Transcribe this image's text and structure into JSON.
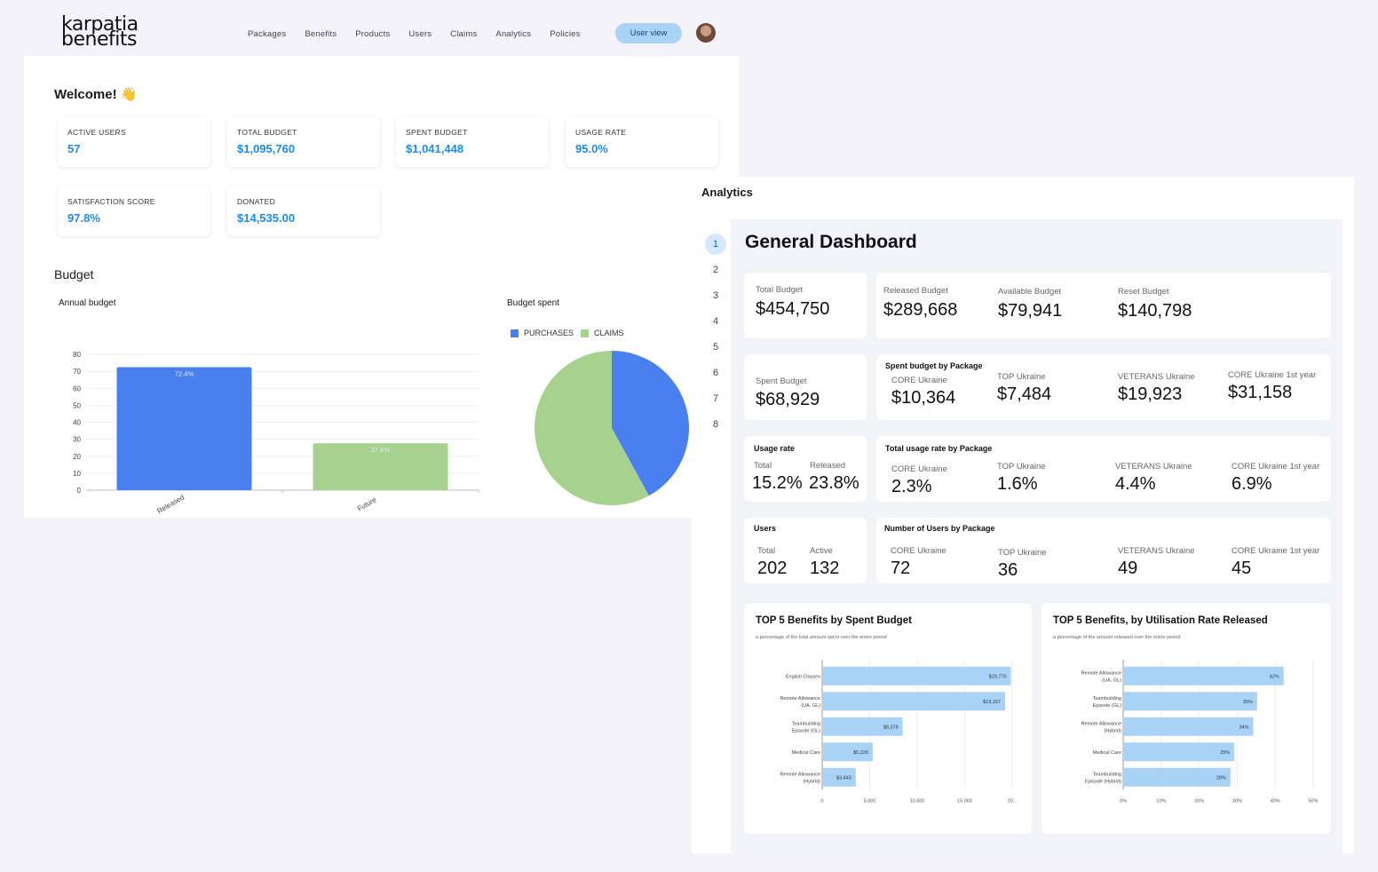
{
  "brand": {
    "line1": "karpatia",
    "line2": "benefits"
  },
  "nav": {
    "items": [
      "Packages",
      "Benefits",
      "Products",
      "Users",
      "Claims",
      "Analytics",
      "Policies"
    ],
    "user_view_label": "User view"
  },
  "welcome": "Welcome! 👋",
  "stats": [
    {
      "label": "ACTIVE USERS",
      "value": "57"
    },
    {
      "label": "TOTAL BUDGET",
      "value": "$1,095,760"
    },
    {
      "label": "SPENT BUDGET",
      "value": "$1,041,448"
    },
    {
      "label": "USAGE RATE",
      "value": "95.0%"
    },
    {
      "label": "SATISFACTION SCORE",
      "value": "97.8%"
    },
    {
      "label": "DONATED",
      "value": "$14,535.00"
    }
  ],
  "budget": {
    "heading": "Budget",
    "annual_title": "Annual budget",
    "spent_title": "Budget spent",
    "legend": [
      "PURCHASES",
      "CLAIMS"
    ]
  },
  "colors": {
    "blue": "#4a7ff0",
    "green": "#a6d18e",
    "accent": "#1e8be8",
    "hbar": "#a8d3f7"
  },
  "chart_data": [
    {
      "type": "bar",
      "title": "Annual budget",
      "categories": [
        "Released",
        "Future"
      ],
      "values": [
        72.4,
        27.6
      ],
      "data_labels": [
        "72.4%",
        "27.6%"
      ],
      "ylim": [
        0,
        80
      ],
      "yticks": [
        0,
        10,
        20,
        30,
        40,
        50,
        60,
        70,
        80
      ],
      "colors": [
        "#4a7ff0",
        "#a6d18e"
      ]
    },
    {
      "type": "pie",
      "title": "Budget spent",
      "labels": [
        "PURCHASES",
        "CLAIMS"
      ],
      "values": [
        42,
        58
      ],
      "colors": [
        "#4a7ff0",
        "#a6d18e"
      ]
    },
    {
      "type": "bar",
      "orientation": "horizontal",
      "title": "TOP 5 Benefits by Spent Budget",
      "subtitle": "a percentage of the total amount spent over the entire period",
      "categories": [
        "English Classes",
        "Remote Allowance (UA, GL)",
        "Teambuilding Episode (GL)",
        "Medical Care",
        "Remote Allowance (Hybrid)"
      ],
      "values": [
        19770,
        19157,
        8378,
        5226,
        3443
      ],
      "data_labels": [
        "$19,770",
        "$19,157",
        "$8,378",
        "$5,226",
        "$3,443"
      ],
      "xlim": [
        0,
        20000
      ],
      "xticks": [
        "0",
        "5,000",
        "10,000",
        "15,000",
        "20..."
      ]
    },
    {
      "type": "bar",
      "orientation": "horizontal",
      "title": "TOP 5 Benefits, by Utilisation Rate Released",
      "subtitle": "a percentage of the amount released over the entire period",
      "categories": [
        "Remote Allowance (UA, GL)",
        "Teambuilding Episode (GL)",
        "Remote Allowance (Hybrid)",
        "Medical Care",
        "Teambuilding Episode (Hybrid)"
      ],
      "values": [
        42,
        35,
        34,
        29,
        28
      ],
      "data_labels": [
        "42%",
        "35%",
        "34%",
        "29%",
        "28%"
      ],
      "xlim": [
        0,
        50
      ],
      "xticks": [
        "0%",
        "10%",
        "20%",
        "30%",
        "40%",
        "50%"
      ]
    }
  ],
  "analytics": {
    "heading": "Analytics",
    "steps": [
      "1",
      "2",
      "3",
      "4",
      "5",
      "6",
      "7",
      "8"
    ],
    "dashboard_title": "General Dashboard",
    "total_budget": {
      "label": "Total Budget",
      "value": "$454,750"
    },
    "released_budget": {
      "label": "Released Budget",
      "value": "$289,668"
    },
    "available_budget": {
      "label": "Available Budget",
      "value": "$79,941"
    },
    "reset_budget": {
      "label": "Reset Budget",
      "value": "$140,798"
    },
    "spent_budget": {
      "label": "Spent Budget",
      "value": "$68,929"
    },
    "spent_by_package": {
      "title": "Spent budget by Package",
      "items": [
        {
          "label": "CORE Ukraine",
          "value": "$10,364"
        },
        {
          "label": "TOP Ukraine",
          "value": "$7,484"
        },
        {
          "label": "VETERANS Ukraine",
          "value": "$19,923"
        },
        {
          "label": "CORE Ukraine 1st year",
          "value": "$31,158"
        }
      ]
    },
    "usage_rate": {
      "title": "Usage rate",
      "total_label": "Total",
      "total_value": "15.2%",
      "released_label": "Released",
      "released_value": "23.8%"
    },
    "usage_by_package": {
      "title": "Total usage rate by Package",
      "items": [
        {
          "label": "CORE Ukraine",
          "value": "2.3%"
        },
        {
          "label": "TOP Ukraine",
          "value": "1.6%"
        },
        {
          "label": "VETERANS Ukraine",
          "value": "4.4%"
        },
        {
          "label": "CORE Ukraine 1st year",
          "value": "6.9%"
        }
      ]
    },
    "users": {
      "title": "Users",
      "total_label": "Total",
      "total_value": "202",
      "active_label": "Active",
      "active_value": "132"
    },
    "users_by_package": {
      "title": "Number of Users by Package",
      "items": [
        {
          "label": "CORE Ukraine",
          "value": "72"
        },
        {
          "label": "TOP Ukraine",
          "value": "36"
        },
        {
          "label": "VETERANS Ukraine",
          "value": "49"
        },
        {
          "label": "CORE Ukraine 1st year",
          "value": "45"
        }
      ]
    }
  }
}
